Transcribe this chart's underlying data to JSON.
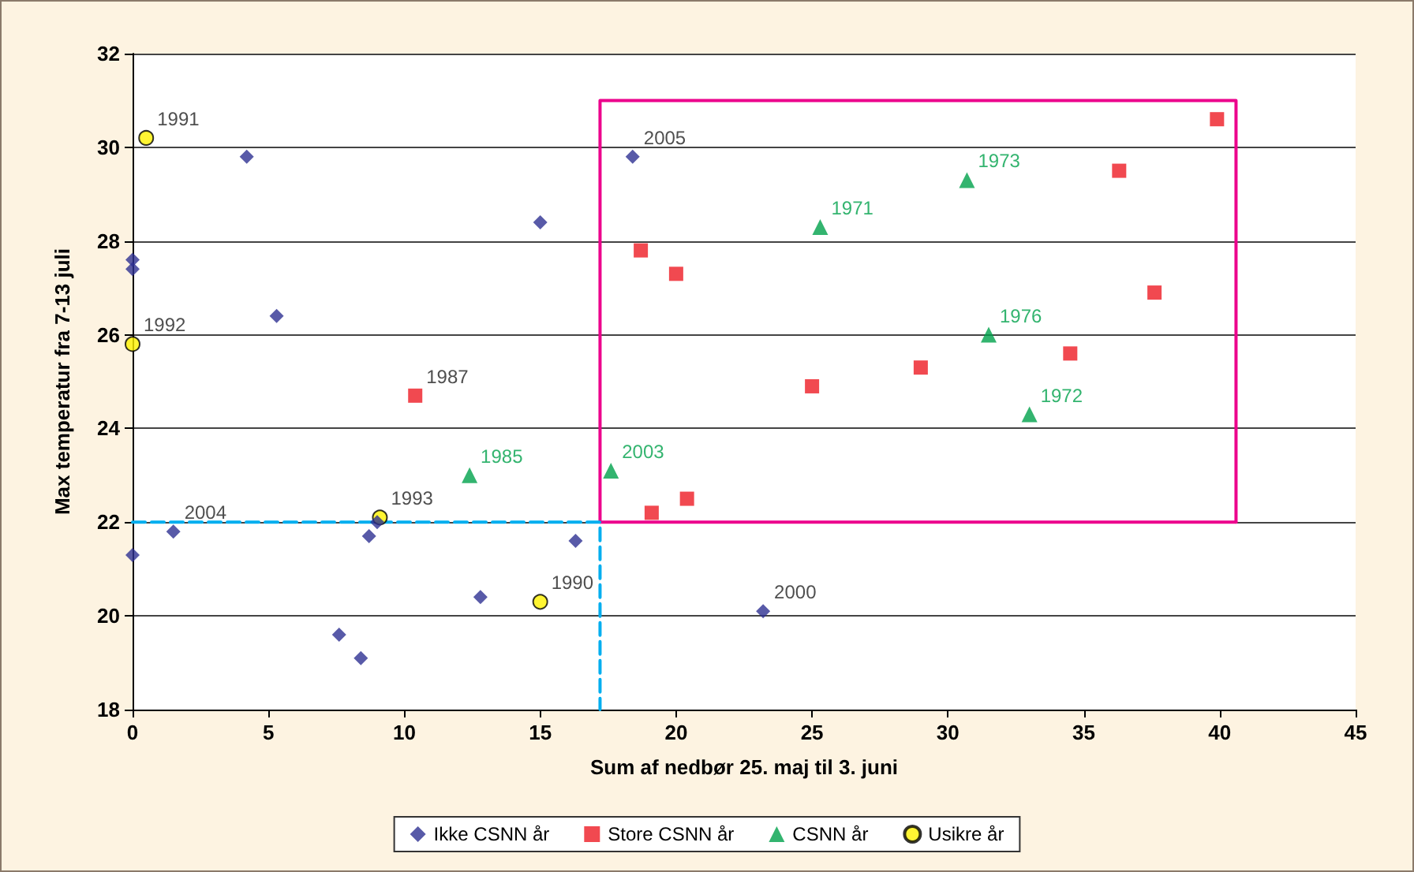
{
  "chart_data": {
    "type": "scatter",
    "xlabel": "Sum af nedbør 25. maj til 3. juni",
    "ylabel": "Max temperatur fra 7-13 juli",
    "xlim": [
      0,
      45
    ],
    "xticks": [
      0,
      5,
      10,
      15,
      20,
      25,
      30,
      35,
      40,
      45
    ],
    "ylim": [
      18,
      32
    ],
    "yticks": [
      18,
      20,
      22,
      24,
      26,
      28,
      30,
      32
    ],
    "grid": "y",
    "legend": "bottom",
    "series": [
      {
        "name": "Ikke CSNN år",
        "color": "#2e3192",
        "marker": "diamond",
        "x": [
          0,
          0,
          0,
          1.5,
          4.2,
          5.3,
          7.6,
          8.4,
          8.7,
          9.0,
          12.8,
          15.0,
          16.3,
          18.4,
          23.2
        ],
        "values": [
          27.6,
          27.4,
          21.3,
          21.8,
          29.8,
          26.4,
          19.6,
          19.1,
          21.7,
          22.0,
          20.4,
          28.4,
          21.6,
          29.8,
          20.1
        ]
      },
      {
        "name": "Store CSNN år",
        "color": "#ed1c24",
        "marker": "square",
        "x": [
          10.4,
          18.7,
          20.0,
          19.1,
          20.4,
          25.0,
          29.0,
          34.5,
          36.3,
          37.6,
          39.9
        ],
        "values": [
          24.7,
          27.8,
          27.3,
          22.2,
          22.5,
          24.9,
          25.3,
          25.6,
          29.5,
          26.9,
          30.6
        ]
      },
      {
        "name": "CSNN år",
        "color": "#00a14b",
        "marker": "triangle",
        "x": [
          12.4,
          17.6,
          25.3,
          30.7,
          31.5,
          33.0
        ],
        "values": [
          23.0,
          23.1,
          28.3,
          29.3,
          26.0,
          24.3
        ]
      },
      {
        "name": "Usikre år",
        "color": "#fff200",
        "marker": "circle",
        "x": [
          0.5,
          0,
          9.1,
          15.0
        ],
        "values": [
          30.2,
          25.8,
          22.1,
          20.3
        ]
      },
      {
        "type": "line",
        "color": "#ec008c",
        "marker": "none",
        "line_style": "solid",
        "x": [
          17.2,
          17.2,
          40.6,
          40.6
        ],
        "values": [
          22,
          31,
          31,
          22
        ]
      },
      {
        "type": "line",
        "color": "#ec008c",
        "marker": "none",
        "line_style": "solid",
        "x": [
          17.2,
          40.6
        ],
        "values": [
          22,
          22
        ]
      },
      {
        "type": "line",
        "color": "#00aeef",
        "marker": "none",
        "line_style": "dashed",
        "x": [
          0,
          17.2,
          17.2
        ],
        "values": [
          22,
          22,
          18
        ]
      }
    ],
    "annotations": [
      {
        "text": "1991",
        "x": 0.5,
        "y": 30.2
      },
      {
        "text": "1992",
        "x": 0,
        "y": 25.8
      },
      {
        "text": "2004",
        "x": 1.5,
        "y": 21.8
      },
      {
        "text": "1987",
        "x": 10.4,
        "y": 24.7
      },
      {
        "text": "1985",
        "x": 12.4,
        "y": 23.0
      },
      {
        "text": "1993",
        "x": 9.1,
        "y": 22.1
      },
      {
        "text": "1990",
        "x": 15.0,
        "y": 20.3
      },
      {
        "text": "2005",
        "x": 18.4,
        "y": 29.8
      },
      {
        "text": "2003",
        "x": 17.6,
        "y": 23.1
      },
      {
        "text": "1971",
        "x": 25.3,
        "y": 28.3
      },
      {
        "text": "1973",
        "x": 30.7,
        "y": 29.3
      },
      {
        "text": "1976",
        "x": 31.5,
        "y": 26.0
      },
      {
        "text": "1972",
        "x": 33.0,
        "y": 24.3
      },
      {
        "text": "2000",
        "x": 23.2,
        "y": 20.1
      }
    ]
  }
}
